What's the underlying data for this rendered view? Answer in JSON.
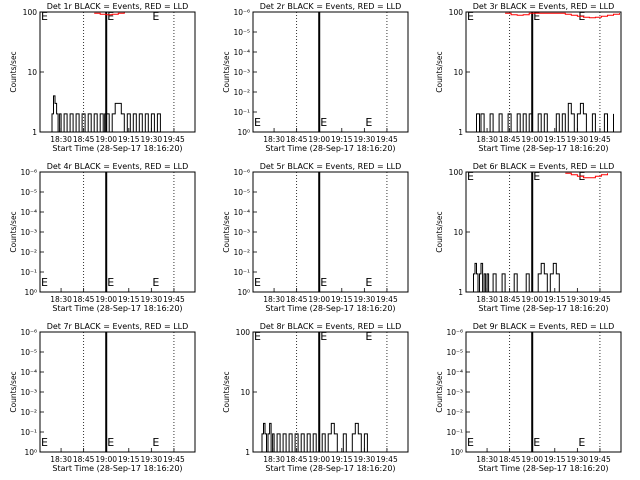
{
  "figure": {
    "xlabel": "Start Time (28-Sep-17 18:16:20)",
    "ylabel": "Counts/sec",
    "x_ticks": [
      "18:30",
      "18:45",
      "19:00",
      "19:15",
      "19:30",
      "19:45"
    ],
    "x_tick_minutes": [
      14,
      29,
      44,
      59,
      74,
      89
    ],
    "x_range_minutes_after_start": [
      0,
      103
    ],
    "dotted_lines_minutes": [
      0,
      29,
      89
    ],
    "solid_line_minutes": 44,
    "marker_letter": "E",
    "marker_minutes": [
      0,
      44,
      74
    ],
    "colors": {
      "events": "#000000",
      "lld": "#ff0000",
      "axes": "#000000"
    }
  },
  "chart_data": [
    {
      "type": "line",
      "scale": "log",
      "title": "Det 1r BLACK = Events, RED = LLD",
      "y_ticks": [
        "1",
        "10",
        "100"
      ],
      "ylim": [
        1,
        100
      ],
      "series": [
        {
          "name": "Events",
          "color": "#000000",
          "x": [
            0,
            4,
            6,
            8,
            9,
            10,
            11,
            12,
            13,
            14,
            16,
            18,
            20,
            22,
            24,
            26,
            28,
            30,
            32,
            34,
            36,
            38,
            40,
            42,
            43,
            44,
            46,
            48,
            50,
            52,
            54,
            56,
            58,
            60,
            62,
            64,
            66,
            68,
            70,
            72,
            74,
            76,
            78,
            80,
            82
          ],
          "y": [
            1,
            1,
            1,
            2,
            4,
            3,
            2,
            1,
            2,
            1,
            2,
            1,
            2,
            1,
            2,
            1,
            2,
            1,
            2,
            1,
            2,
            1,
            2,
            1,
            2,
            2,
            1,
            2,
            3,
            3,
            2,
            1,
            2,
            1,
            2,
            1,
            2,
            1,
            2,
            1,
            2,
            1,
            2,
            1,
            1
          ]
        },
        {
          "name": "LLD",
          "color": "#ff0000",
          "x": [
            36,
            40,
            44,
            48,
            52,
            56
          ],
          "y": [
            95,
            92,
            90,
            92,
            95,
            98
          ]
        }
      ]
    },
    {
      "type": "line",
      "scale": "log",
      "title": "Det 2r BLACK = Events, RED = LLD",
      "y_ticks": [
        "10⁰",
        "10⁻¹",
        "10⁻²",
        "10⁻³",
        "10⁻⁴",
        "10⁻⁵",
        "10⁻⁶"
      ],
      "ylim": [
        1,
        1000000
      ],
      "series": []
    },
    {
      "type": "line",
      "scale": "log",
      "title": "Det 3r BLACK = Events, RED = LLD",
      "y_ticks": [
        "1",
        "10",
        "100"
      ],
      "ylim": [
        1,
        100
      ],
      "series": [
        {
          "name": "Events",
          "color": "#000000",
          "x": [
            0,
            6,
            7,
            8,
            9,
            10,
            12,
            14,
            16,
            18,
            20,
            22,
            24,
            26,
            28,
            30,
            32,
            34,
            36,
            38,
            40,
            42,
            44,
            46,
            48,
            50,
            52,
            54,
            56,
            58,
            60,
            62,
            64,
            66,
            68,
            70,
            72,
            74,
            76,
            78,
            80,
            82,
            84,
            86,
            88,
            90,
            92,
            94,
            96,
            98
          ],
          "y": [
            1,
            1,
            2,
            2,
            1,
            2,
            1,
            1,
            2,
            1,
            1,
            2,
            1,
            1,
            2,
            1,
            1,
            2,
            1,
            2,
            1,
            2,
            1,
            1,
            2,
            1,
            2,
            1,
            1,
            1,
            2,
            1,
            2,
            1,
            3,
            2,
            1,
            2,
            3,
            2,
            1,
            1,
            2,
            1,
            1,
            1,
            2,
            1,
            1,
            2
          ]
        },
        {
          "name": "LLD",
          "color": "#ff0000",
          "x": [
            26,
            30,
            34,
            38,
            42,
            60,
            66,
            70,
            74,
            78,
            82,
            86,
            90,
            94,
            98,
            102
          ],
          "y": [
            95,
            90,
            88,
            90,
            95,
            95,
            92,
            88,
            85,
            82,
            80,
            82,
            85,
            88,
            92,
            96
          ]
        }
      ]
    },
    {
      "type": "line",
      "scale": "log",
      "title": "Det 4r BLACK = Events, RED = LLD",
      "y_ticks": [
        "10⁰",
        "10⁻¹",
        "10⁻²",
        "10⁻³",
        "10⁻⁴",
        "10⁻⁵",
        "10⁻⁶"
      ],
      "ylim": [
        1,
        1000000
      ],
      "series": []
    },
    {
      "type": "line",
      "scale": "log",
      "title": "Det 5r BLACK = Events, RED = LLD",
      "y_ticks": [
        "10⁰",
        "10⁻¹",
        "10⁻²",
        "10⁻³",
        "10⁻⁴",
        "10⁻⁵",
        "10⁻⁶"
      ],
      "ylim": [
        1,
        1000000
      ],
      "series": []
    },
    {
      "type": "line",
      "scale": "log",
      "title": "Det 6r BLACK = Events, RED = LLD",
      "y_ticks": [
        "1",
        "10",
        "100"
      ],
      "ylim": [
        1,
        100
      ],
      "series": [
        {
          "name": "Events",
          "color": "#000000",
          "x": [
            0,
            4,
            5,
            6,
            7,
            8,
            9,
            10,
            11,
            12,
            13,
            14,
            15,
            16,
            18,
            20,
            22,
            24,
            26,
            28,
            30,
            32,
            34,
            36,
            38,
            40,
            42,
            44,
            46,
            48,
            50,
            52,
            54,
            56,
            58,
            60,
            62,
            64,
            66,
            68,
            70,
            72,
            74,
            76,
            78,
            80
          ],
          "y": [
            1,
            1,
            2,
            3,
            2,
            1,
            2,
            3,
            1,
            2,
            1,
            2,
            1,
            1,
            2,
            1,
            1,
            2,
            1,
            1,
            1,
            2,
            1,
            1,
            1,
            2,
            1,
            1,
            1,
            2,
            3,
            2,
            1,
            2,
            3,
            2,
            1,
            1,
            1,
            1,
            1,
            1,
            1,
            1,
            1,
            1
          ]
        },
        {
          "name": "LLD",
          "color": "#ff0000",
          "x": [
            66,
            70,
            74,
            78,
            82,
            86,
            90,
            94
          ],
          "y": [
            95,
            90,
            85,
            80,
            80,
            85,
            90,
            95
          ]
        }
      ]
    },
    {
      "type": "line",
      "scale": "log",
      "title": "Det 7r BLACK = Events, RED = LLD",
      "y_ticks": [
        "10⁰",
        "10⁻¹",
        "10⁻²",
        "10⁻³",
        "10⁻⁴",
        "10⁻⁵",
        "10⁻⁶"
      ],
      "ylim": [
        1,
        1000000
      ],
      "series": []
    },
    {
      "type": "line",
      "scale": "log",
      "title": "Det 8r BLACK = Events, RED = LLD",
      "y_ticks": [
        "1",
        "10",
        "100"
      ],
      "ylim": [
        1,
        100
      ],
      "series": [
        {
          "name": "Events",
          "color": "#000000",
          "x": [
            0,
            4,
            6,
            7,
            8,
            9,
            10,
            11,
            12,
            13,
            14,
            16,
            18,
            20,
            22,
            24,
            26,
            28,
            30,
            32,
            34,
            36,
            38,
            40,
            42,
            44,
            46,
            48,
            50,
            52,
            54,
            56,
            58,
            60,
            62,
            64,
            66,
            68,
            70,
            72,
            74,
            76,
            78,
            80
          ],
          "y": [
            1,
            1,
            2,
            3,
            2,
            1,
            2,
            3,
            1,
            2,
            1,
            2,
            1,
            2,
            1,
            2,
            1,
            2,
            1,
            2,
            1,
            2,
            1,
            2,
            1,
            1,
            2,
            1,
            2,
            3,
            2,
            1,
            1,
            2,
            1,
            1,
            2,
            3,
            2,
            1,
            2,
            1,
            1,
            1
          ]
        }
      ]
    },
    {
      "type": "line",
      "scale": "log",
      "title": "Det 9r BLACK = Events, RED = LLD",
      "y_ticks": [
        "10⁰",
        "10⁻¹",
        "10⁻²",
        "10⁻³",
        "10⁻⁴",
        "10⁻⁵",
        "10⁻⁶"
      ],
      "ylim": [
        1,
        1000000
      ],
      "series": []
    }
  ]
}
